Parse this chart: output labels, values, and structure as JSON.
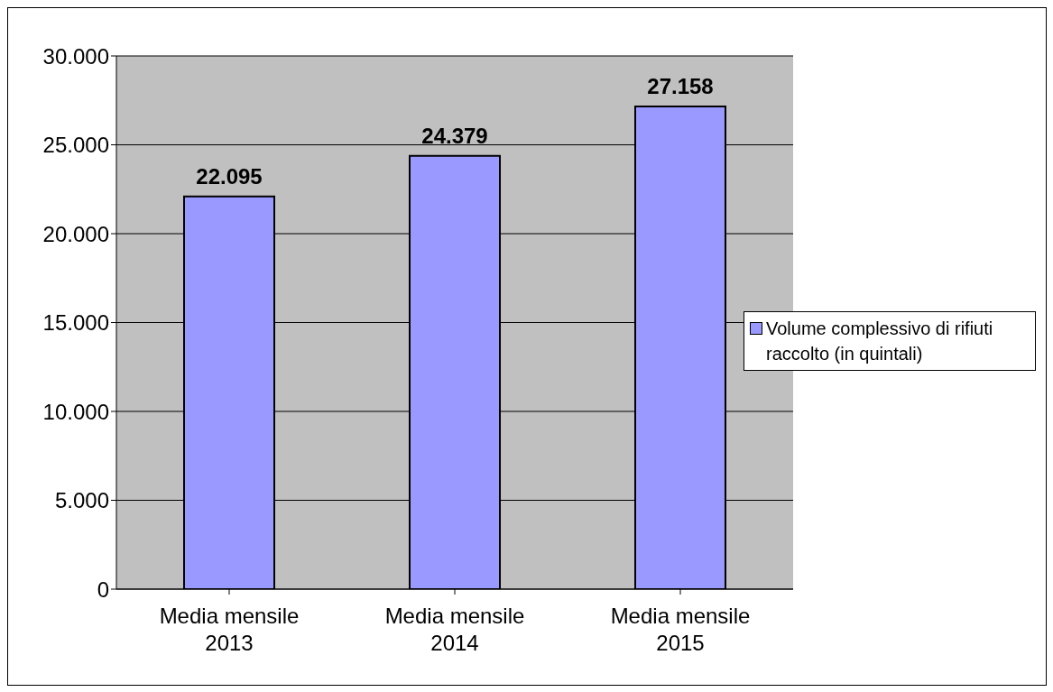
{
  "chart_data": {
    "type": "bar",
    "categories": [
      "Media mensile 2013",
      "Media mensile 2014",
      "Media mensile 2015"
    ],
    "series": [
      {
        "name": "Volume complessivo di rifiuti raccolto (in quintali)",
        "color": "#9999ff",
        "values": [
          22095,
          24379,
          27158
        ],
        "value_labels": [
          "22.095",
          "24.379",
          "27.158"
        ]
      }
    ],
    "ylim": [
      0,
      30000
    ],
    "yticks": [
      0,
      {
        "value": 5000,
        "label": "5.000"
      },
      {
        "value": 10000,
        "label": "10.000"
      },
      {
        "value": 15000,
        "label": "15.000"
      },
      {
        "value": 20000,
        "label": "20.000"
      },
      {
        "value": 25000,
        "label": "25.000"
      },
      {
        "value": 30000,
        "label": "30.000"
      }
    ],
    "grid": "y",
    "legend": "right"
  }
}
